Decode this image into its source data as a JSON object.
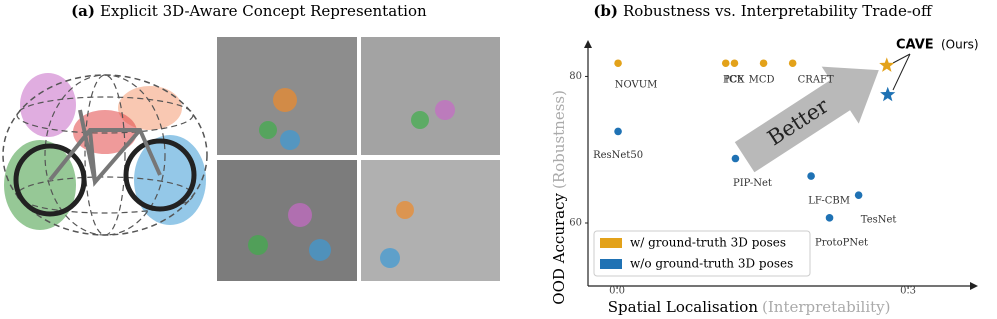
{
  "panel_a": {
    "label": "(a)",
    "title": "Explicit 3D-Aware Concept Representation"
  },
  "chart_data": {
    "type": "scatter",
    "label": "(b)",
    "title": "Robustness vs. Interpretability Trade-off",
    "x_label": "Spatial Localisation",
    "x_label_note": "(Interpretability)",
    "y_label": "OOD Accuracy",
    "y_label_note": "(Robustness)",
    "xlim": [
      -0.03,
      0.37
    ],
    "ylim": [
      51.4,
      84.7
    ],
    "xticks": [
      {
        "value": 0,
        "label": "0.0"
      },
      0.3
    ],
    "yticks": [
      60,
      80
    ],
    "legend": "lower left",
    "annotations": {
      "arrow_text": "Better",
      "highlight": "CAVE",
      "highlight_note": "(Ours)"
    },
    "series": [
      {
        "name": "w/ ground-truth 3D poses",
        "color": "#e3a21a",
        "x": [
          0.001,
          0.112,
          0.121,
          0.151,
          0.181,
          0.278
        ],
        "values": [
          81.8,
          81.8,
          81.8,
          81.8,
          81.8,
          81.5
        ],
        "point_labels": [
          "NOVUM",
          "PCX",
          "ICE",
          "MCD",
          "CRAFT",
          null
        ],
        "markers": [
          "circle",
          "circle",
          "circle",
          "circle",
          "circle",
          "star"
        ]
      },
      {
        "name": "w/o ground-truth 3D poses",
        "color": "#1f72b4",
        "x": [
          0.001,
          0.122,
          0.2,
          0.249,
          0.219,
          0.279
        ],
        "values": [
          72.5,
          68.8,
          66.4,
          63.8,
          60.7,
          77.5
        ],
        "point_labels": [
          "ResNet50",
          "PIP-Net",
          "LF-CBM",
          "TesNet",
          "ProtoPNet",
          null
        ],
        "markers": [
          "circle",
          "circle",
          "circle",
          "circle",
          "circle",
          "star"
        ]
      }
    ]
  }
}
